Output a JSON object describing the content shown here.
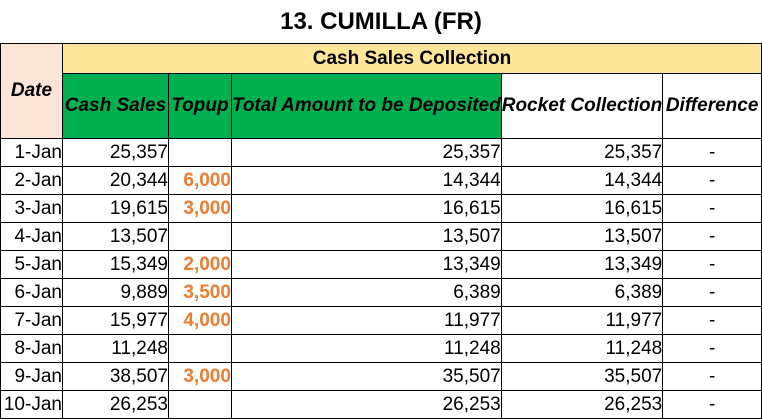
{
  "title": "13. CUMILLA (FR)",
  "headers": {
    "date": "Date",
    "group": "Cash Sales Collection",
    "cash_sales": "Cash Sales",
    "topup": "Topup",
    "total_amount": "Total Amount to be Deposited",
    "rocket_collection": "Rocket Collection",
    "difference": "Difference"
  },
  "colors": {
    "date_header_bg": "#fce4d6",
    "group_header_bg": "#ffe699",
    "green_header_bg": "#00b050",
    "topup_text": "#ed7d31"
  },
  "rows": [
    {
      "date": "1-Jan",
      "cash_sales": "25,357",
      "topup": "",
      "total": "25,357",
      "rocket": "25,357",
      "difference": "-"
    },
    {
      "date": "2-Jan",
      "cash_sales": "20,344",
      "topup": "6,000",
      "total": "14,344",
      "rocket": "14,344",
      "difference": "-"
    },
    {
      "date": "3-Jan",
      "cash_sales": "19,615",
      "topup": "3,000",
      "total": "16,615",
      "rocket": "16,615",
      "difference": "-"
    },
    {
      "date": "4-Jan",
      "cash_sales": "13,507",
      "topup": "",
      "total": "13,507",
      "rocket": "13,507",
      "difference": "-"
    },
    {
      "date": "5-Jan",
      "cash_sales": "15,349",
      "topup": "2,000",
      "total": "13,349",
      "rocket": "13,349",
      "difference": "-"
    },
    {
      "date": "6-Jan",
      "cash_sales": "9,889",
      "topup": "3,500",
      "total": "6,389",
      "rocket": "6,389",
      "difference": "-"
    },
    {
      "date": "7-Jan",
      "cash_sales": "15,977",
      "topup": "4,000",
      "total": "11,977",
      "rocket": "11,977",
      "difference": "-"
    },
    {
      "date": "8-Jan",
      "cash_sales": "11,248",
      "topup": "",
      "total": "11,248",
      "rocket": "11,248",
      "difference": "-"
    },
    {
      "date": "9-Jan",
      "cash_sales": "38,507",
      "topup": "3,000",
      "total": "35,507",
      "rocket": "35,507",
      "difference": "-"
    },
    {
      "date": "10-Jan",
      "cash_sales": "26,253",
      "topup": "",
      "total": "26,253",
      "rocket": "26,253",
      "difference": "-"
    }
  ]
}
